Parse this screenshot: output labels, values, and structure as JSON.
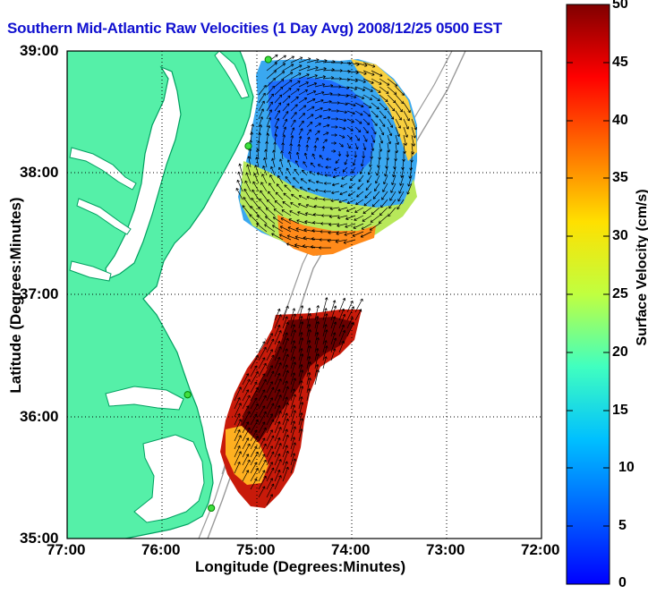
{
  "title": "Southern Mid-Atlantic Raw Velocities (1 Day Avg) 2008/12/25 0500 EST",
  "axes": {
    "xlabel": "Longitude (Degrees:Minutes)",
    "ylabel": "Latitude (Degrees:Minutes)",
    "x_ticks": [
      "77:00",
      "76:00",
      "75:00",
      "74:00",
      "73:00",
      "72:00"
    ],
    "y_ticks": [
      "39:00",
      "38:00",
      "37:00",
      "36:00",
      "35:00"
    ]
  },
  "colorbar": {
    "label": "Surface Velocity (cm/s)",
    "ticks": [
      "50",
      "45",
      "40",
      "35",
      "30",
      "25",
      "20",
      "15",
      "10",
      "5",
      "0"
    ],
    "min": 0,
    "max": 50
  },
  "colors": {
    "land": "#55f0a8",
    "coast": "#00a060",
    "title": "#1010d0"
  },
  "map": {
    "lon_range": [
      -77,
      -72
    ],
    "lat_range": [
      35,
      39
    ],
    "grid": true,
    "stations": [
      {
        "lon": -74.88,
        "lat": 38.93
      },
      {
        "lon": -75.09,
        "lat": 38.22
      },
      {
        "lon": -75.73,
        "lat": 36.18
      },
      {
        "lon": -75.48,
        "lat": 35.25
      }
    ]
  }
}
